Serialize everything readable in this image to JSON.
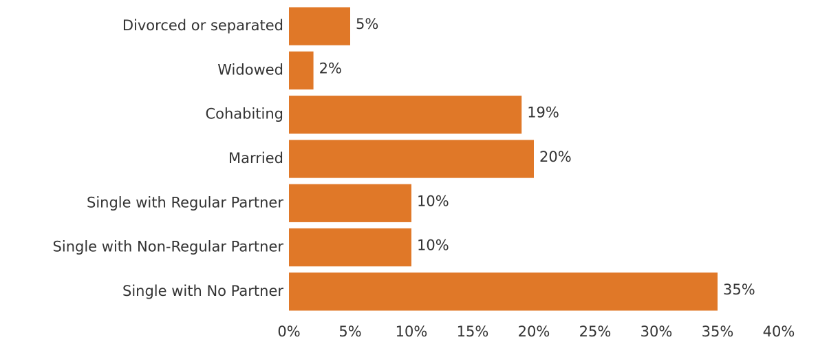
{
  "chart_data": {
    "type": "bar",
    "orientation": "horizontal",
    "categories": [
      "Divorced or separated",
      "Widowed",
      "Cohabiting",
      "Married",
      "Single with Regular Partner",
      "Single with Non-Regular Partner",
      "Single with No Partner"
    ],
    "values": [
      5,
      2,
      19,
      20,
      10,
      10,
      35
    ],
    "value_labels": [
      "5%",
      "2%",
      "19%",
      "20%",
      "10%",
      "10%",
      "35%"
    ],
    "color": "#e07828",
    "xlim": [
      0,
      40
    ],
    "xticks": [
      {
        "value": 0,
        "label": "0%"
      },
      {
        "value": 5,
        "label": "5%"
      },
      {
        "value": 10,
        "label": "10%"
      },
      {
        "value": 15,
        "label": "15%"
      },
      {
        "value": 20,
        "label": "20%"
      },
      {
        "value": 25,
        "label": "25%"
      },
      {
        "value": 30,
        "label": "30%"
      },
      {
        "value": 35,
        "label": "35%"
      },
      {
        "value": 40,
        "label": "40%"
      }
    ],
    "grid": false
  }
}
